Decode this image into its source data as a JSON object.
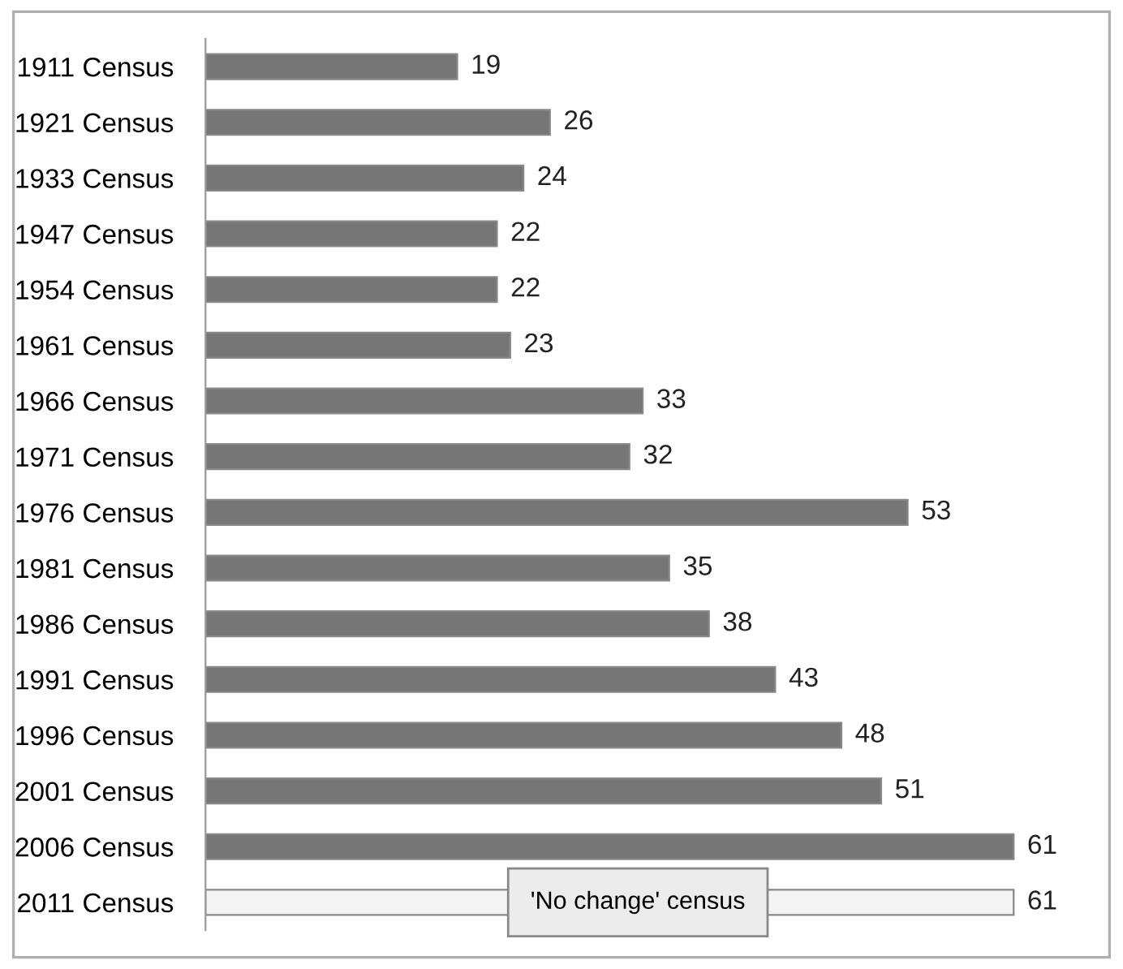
{
  "chart_data": {
    "type": "bar",
    "orientation": "horizontal",
    "categories": [
      "1911 Census",
      "1921 Census",
      "1933 Census",
      "1947 Census",
      "1954 Census",
      "1961 Census",
      "1966 Census",
      "1971 Census",
      "1976 Census",
      "1981 Census",
      "1986 Census",
      "1991 Census",
      "1996 Census",
      "2001 Census",
      "2006 Census",
      "2011 Census"
    ],
    "values": [
      19,
      26,
      24,
      22,
      22,
      23,
      33,
      32,
      53,
      35,
      38,
      43,
      48,
      51,
      61,
      61
    ],
    "colors": [
      "#767676",
      "#767676",
      "#767676",
      "#767676",
      "#767676",
      "#767676",
      "#767676",
      "#767676",
      "#767676",
      "#767676",
      "#767676",
      "#767676",
      "#767676",
      "#767676",
      "#767676",
      "#f4f4f4"
    ],
    "data_labels": true,
    "tick_labels": "y",
    "annotations": [
      "'No change' census"
    ]
  }
}
